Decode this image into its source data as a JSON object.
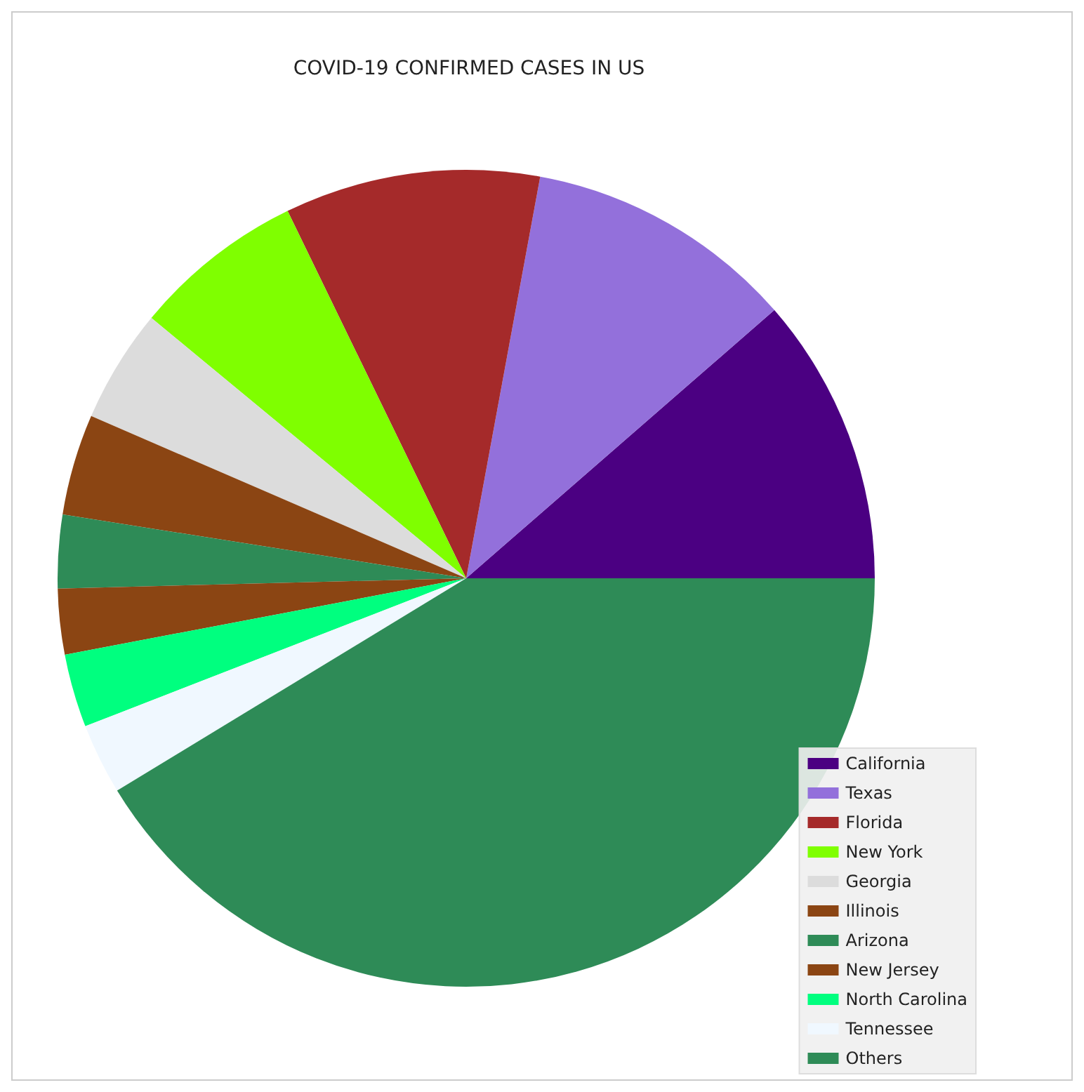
{
  "chart_data": {
    "type": "pie",
    "title": "COVID-19 CONFIRMED CASES IN US",
    "categories": [
      "California",
      "Texas",
      "Florida",
      "New York",
      "Georgia",
      "Illinois",
      "Arizona",
      "New Jersey",
      "North Carolina",
      "Tennessee",
      "Others"
    ],
    "values": [
      11.4,
      10.7,
      10.1,
      6.8,
      4.5,
      4.0,
      2.9,
      2.6,
      2.9,
      2.8,
      41.3
    ],
    "colors": [
      "#4b0082",
      "#9370db",
      "#a52a2a",
      "#7fff00",
      "#dcdcdc",
      "#8b4513",
      "#2e8b57",
      "#8b4513",
      "#00ff7f",
      "#f0f8ff",
      "#2e8b57"
    ],
    "legend": "bottom right"
  }
}
